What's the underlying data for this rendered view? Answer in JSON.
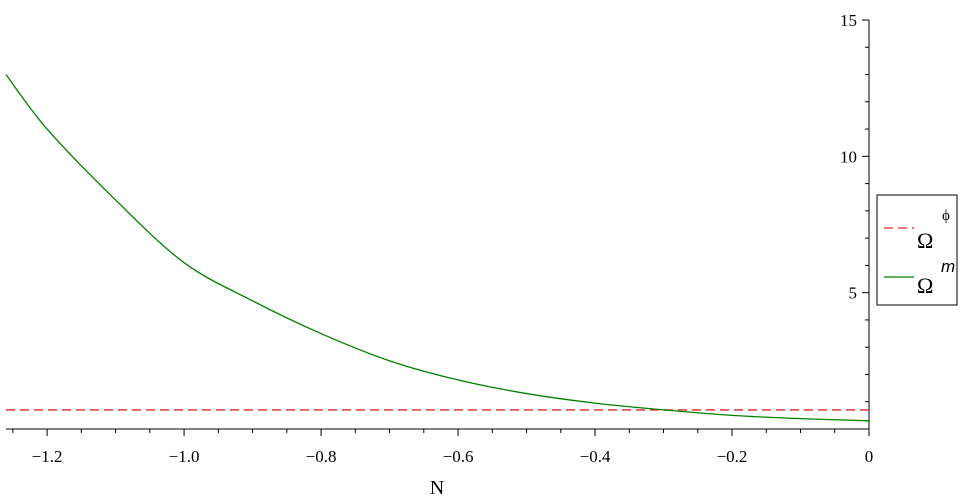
{
  "chart_data": {
    "type": "line",
    "xlabel": "N",
    "ylabel": "",
    "title": "",
    "xlim": [
      -1.26,
      0
    ],
    "ylim": [
      0,
      15
    ],
    "x_ticks": [
      -1.2,
      -1.0,
      -0.8,
      -0.6,
      -0.4,
      -0.2,
      0
    ],
    "x_tick_labels": [
      "−1.2",
      "−1.0",
      "−0.8",
      "−0.6",
      "−0.4",
      "−0.2",
      "0"
    ],
    "y_ticks": [
      5,
      10,
      15
    ],
    "y_tick_labels": [
      "5",
      "10",
      "15"
    ],
    "grid": false,
    "legend_position": "right",
    "series": [
      {
        "name": "Ω",
        "superscript": "ϕ",
        "color": "#d62728",
        "style": "dashed",
        "x": [
          -1.26,
          0
        ],
        "y": [
          0.7,
          0.7
        ]
      },
      {
        "name": "Ω",
        "superscript": "m",
        "color": "#008000",
        "style": "solid",
        "x": [
          -1.26,
          -1.2,
          -1.1,
          -1.0,
          -0.9,
          -0.8,
          -0.7,
          -0.6,
          -0.5,
          -0.4,
          -0.3,
          -0.2,
          -0.1,
          0
        ],
        "y": [
          13.0,
          11.0,
          8.4,
          6.1,
          4.7,
          3.5,
          2.5,
          1.8,
          1.3,
          0.95,
          0.7,
          0.5,
          0.38,
          0.3
        ]
      }
    ]
  }
}
